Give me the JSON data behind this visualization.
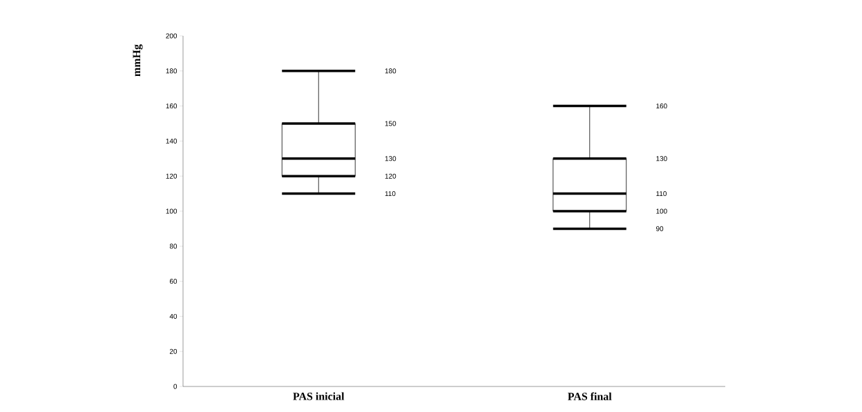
{
  "chart_data": {
    "type": "box",
    "ylabel": "mmHg",
    "categories": [
      "PAS inicial",
      "PAS final"
    ],
    "boxes": [
      {
        "low": 110,
        "q1": 120,
        "median": 130,
        "q3": 150,
        "high": 180
      },
      {
        "low": 90,
        "q1": 100,
        "median": 110,
        "q3": 130,
        "high": 160
      }
    ],
    "ylim": [
      0,
      200
    ],
    "yticks": [
      0,
      20,
      40,
      60,
      80,
      100,
      120,
      140,
      160,
      180,
      200
    ],
    "color": "#000000",
    "grid": false,
    "annotations": [
      "110",
      "120",
      "130",
      "150",
      "180",
      "90",
      "100",
      "110",
      "130",
      "160"
    ]
  }
}
